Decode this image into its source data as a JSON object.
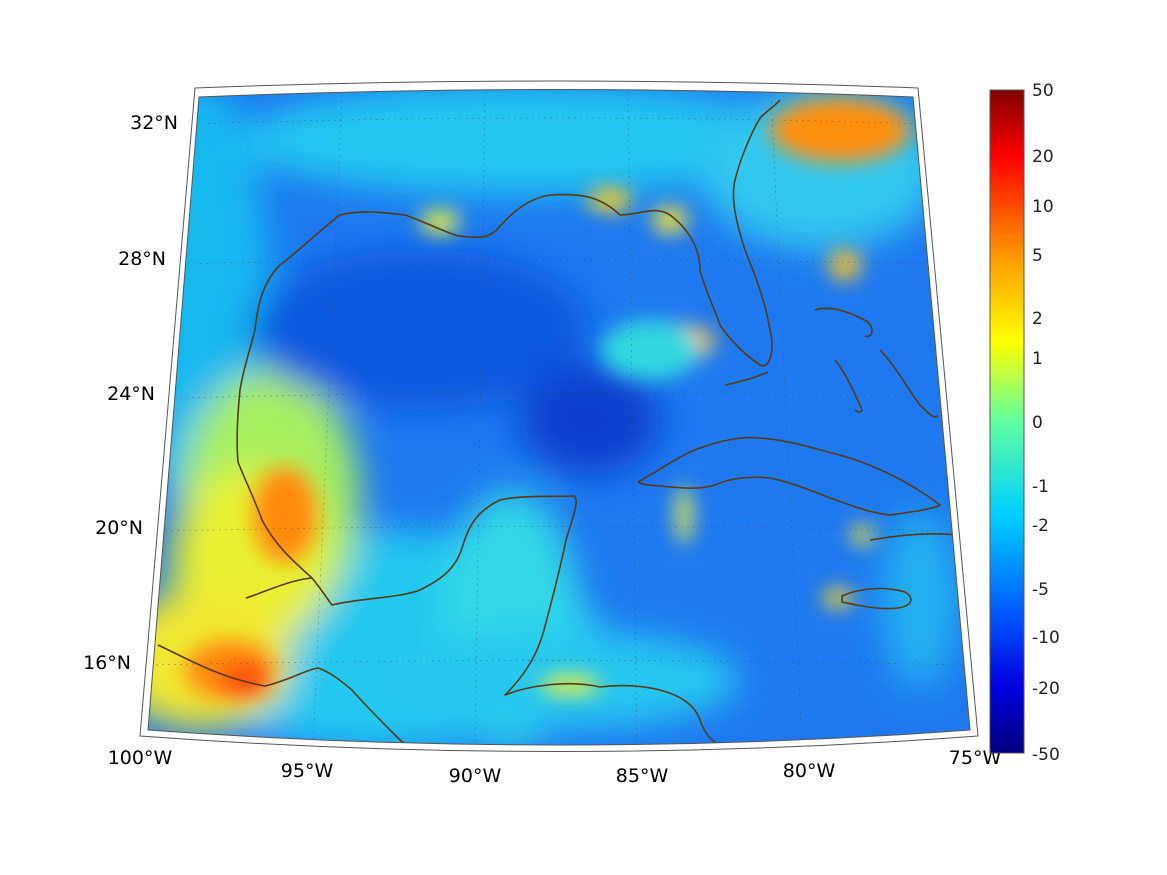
{
  "map": {
    "lon_labels": [
      "100°W",
      "95°W",
      "90°W",
      "85°W",
      "80°W",
      "75°W"
    ],
    "lat_labels": [
      "32°N",
      "28°N",
      "24°N",
      "20°N",
      "16°N"
    ],
    "extent": {
      "lon_min": -100,
      "lon_max": -75,
      "lat_min": 14,
      "lat_max": 33
    },
    "colormap": "jet",
    "coastline_color": "#5a3a12",
    "gridlines": "dotted"
  },
  "colorbar": {
    "ticks": [
      "50",
      "20",
      "10",
      "5",
      "2",
      "1",
      "0",
      "-1",
      "-2",
      "-5",
      "-10",
      "-20",
      "-50"
    ]
  },
  "colors": {
    "deep_blue": "#0a3fd8",
    "blue": "#1a6cf0",
    "cyan": "#16c0f0",
    "light": "#7ef0b0",
    "yellow": "#e8f030",
    "orange": "#ff9a10",
    "red": "#ff3a00",
    "dark_red": "#800000"
  }
}
